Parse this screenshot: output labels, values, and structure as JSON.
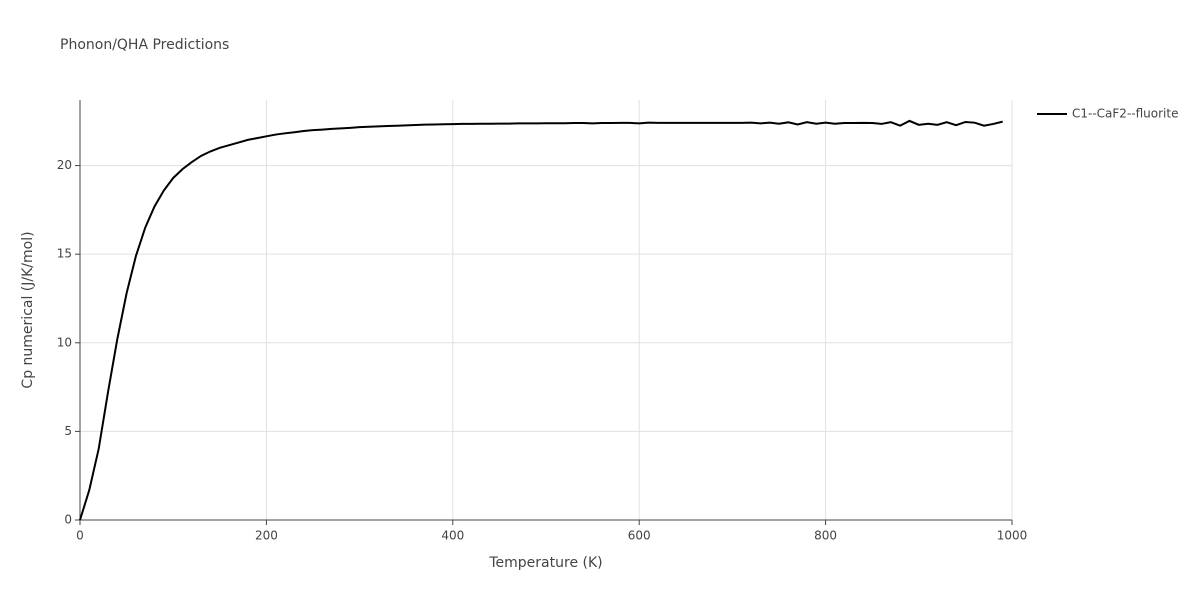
{
  "chart_data": {
    "type": "line",
    "title": "Phonon/QHA Predictions",
    "x_label": "Temperature (K)",
    "y_label": "Cp numerical (J/K/mol)",
    "xlim": [
      0,
      1000
    ],
    "ylim": [
      0,
      23.7
    ],
    "xticks": [
      0,
      200,
      400,
      600,
      800,
      1000
    ],
    "yticks": [
      0,
      5,
      10,
      15,
      20
    ],
    "grid": true,
    "x": [
      0,
      10,
      20,
      30,
      40,
      50,
      60,
      70,
      80,
      90,
      100,
      110,
      120,
      130,
      140,
      150,
      160,
      170,
      180,
      190,
      200,
      210,
      220,
      230,
      240,
      250,
      260,
      270,
      280,
      290,
      300,
      310,
      320,
      330,
      340,
      350,
      360,
      370,
      380,
      390,
      400,
      410,
      420,
      430,
      440,
      450,
      460,
      470,
      480,
      490,
      500,
      510,
      520,
      530,
      540,
      550,
      560,
      570,
      580,
      590,
      600,
      610,
      620,
      630,
      640,
      650,
      660,
      670,
      680,
      690,
      700,
      710,
      720,
      730,
      740,
      750,
      760,
      770,
      780,
      790,
      800,
      810,
      820,
      830,
      840,
      850,
      860,
      870,
      880,
      890,
      900,
      910,
      920,
      930,
      940,
      950,
      960,
      970,
      980,
      990
    ],
    "series": [
      {
        "name": "C1--CaF2--fluorite",
        "color": "#000000",
        "values": [
          0,
          1.7,
          4.0,
          7.2,
          10.2,
          12.8,
          14.9,
          16.5,
          17.7,
          18.6,
          19.3,
          19.8,
          20.2,
          20.55,
          20.8,
          21.0,
          21.15,
          21.3,
          21.45,
          21.55,
          21.65,
          21.75,
          21.82,
          21.88,
          21.95,
          22.0,
          22.03,
          22.07,
          22.1,
          22.13,
          22.17,
          22.19,
          22.21,
          22.23,
          22.25,
          22.27,
          22.29,
          22.31,
          22.32,
          22.33,
          22.34,
          22.35,
          22.35,
          22.36,
          22.36,
          22.37,
          22.37,
          22.38,
          22.38,
          22.38,
          22.39,
          22.39,
          22.39,
          22.4,
          22.4,
          22.38,
          22.4,
          22.4,
          22.41,
          22.41,
          22.38,
          22.42,
          22.41,
          22.41,
          22.41,
          22.41,
          22.41,
          22.41,
          22.41,
          22.41,
          22.41,
          22.41,
          22.42,
          22.38,
          22.42,
          22.36,
          22.44,
          22.32,
          22.45,
          22.36,
          22.42,
          22.36,
          22.4,
          22.4,
          22.41,
          22.4,
          22.35,
          22.45,
          22.25,
          22.52,
          22.3,
          22.36,
          22.3,
          22.45,
          22.28,
          22.46,
          22.42,
          22.25,
          22.35,
          22.48
        ]
      }
    ],
    "legend": "top-right"
  }
}
